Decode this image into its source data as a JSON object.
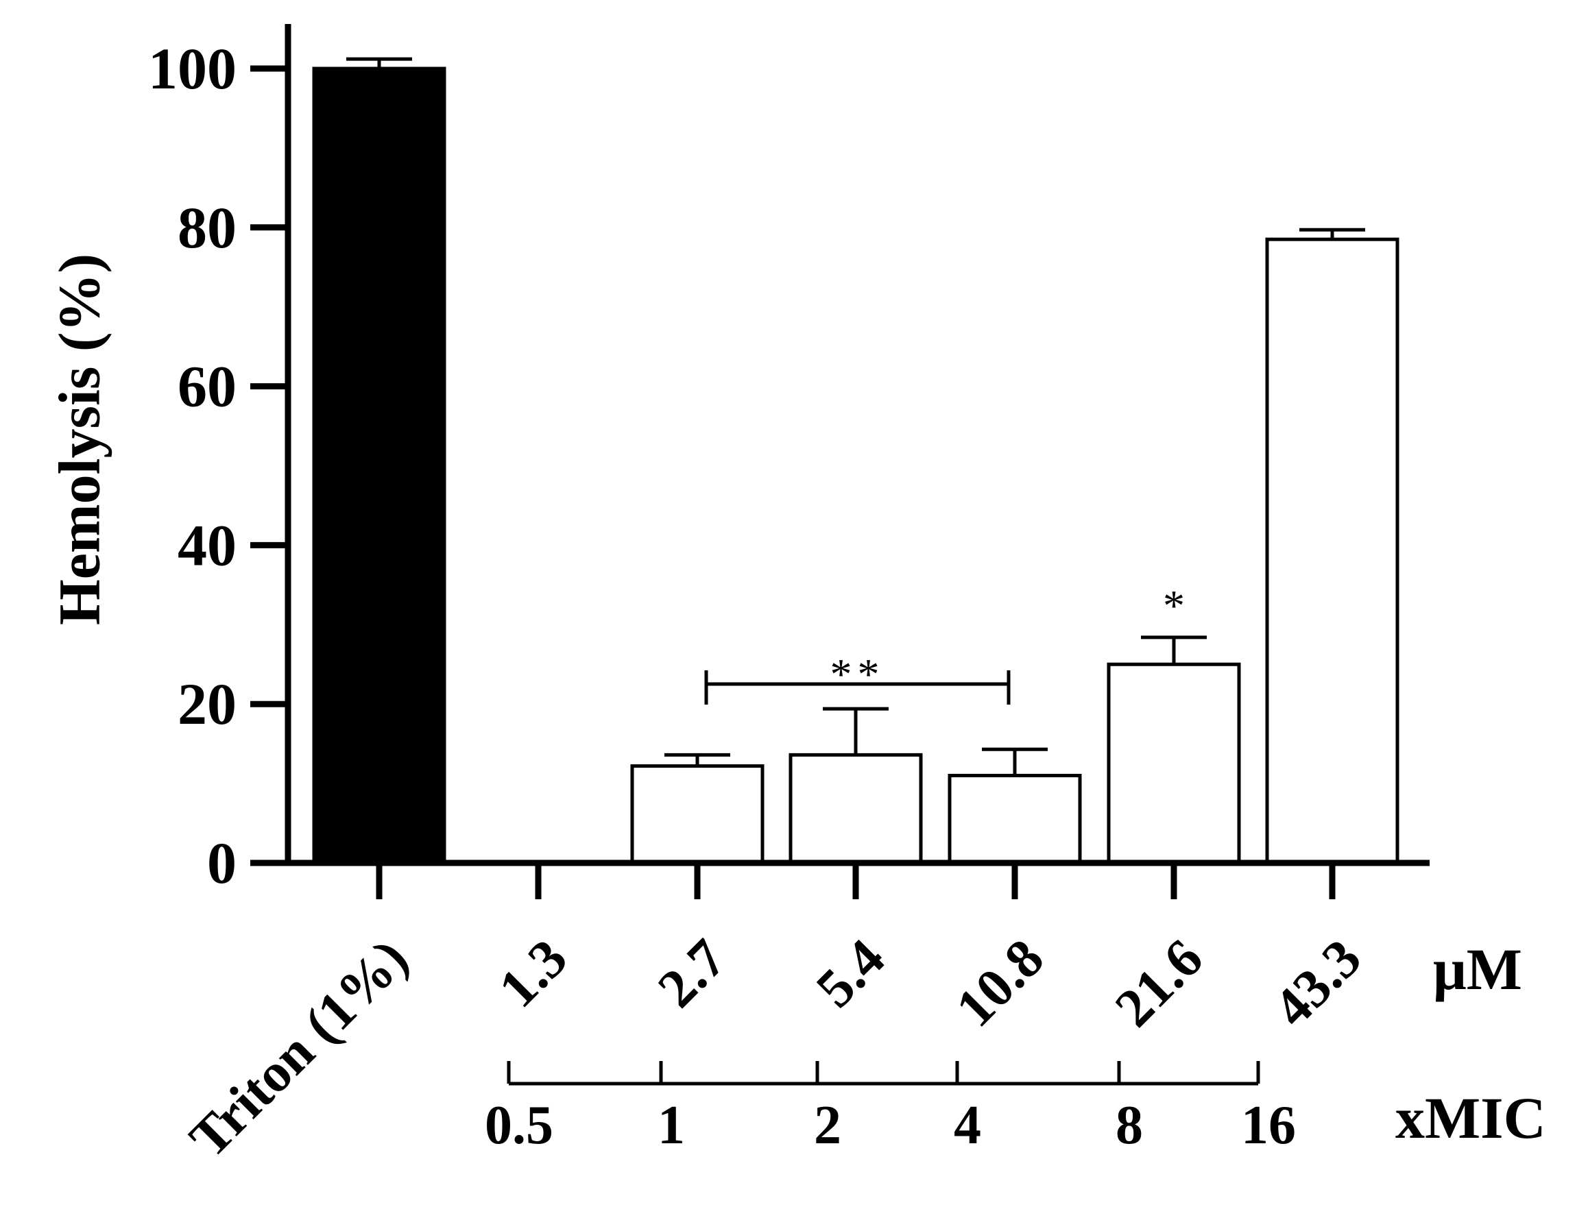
{
  "chart_data": {
    "type": "bar",
    "categories": [
      "Triton (1%)",
      "1.3",
      "2.7",
      "5.4",
      "10.8",
      "21.6",
      "43.3"
    ],
    "values": [
      100,
      0,
      12.2,
      13.6,
      11.0,
      25.0,
      78.5
    ],
    "errors": [
      1.2,
      0,
      1.4,
      5.8,
      3.3,
      3.4,
      1.2
    ],
    "bar_fill": [
      "#000000",
      "#ffffff",
      "#ffffff",
      "#ffffff",
      "#ffffff",
      "#ffffff",
      "#ffffff"
    ],
    "ylabel": "Hemolysis (%)",
    "ylim": [
      0,
      100
    ],
    "yticks": [
      0,
      20,
      40,
      60,
      80,
      100
    ],
    "x_unit": "μM",
    "secondary_axis": {
      "label": "xMIC",
      "ticks": [
        "0.5",
        "1",
        "2",
        "4",
        "8",
        "16"
      ]
    },
    "annotations": [
      {
        "text": "**",
        "from_category": "2.7",
        "to_category": "10.8"
      },
      {
        "text": "*",
        "category": "21.6"
      }
    ],
    "grid": false,
    "legend": "none"
  }
}
